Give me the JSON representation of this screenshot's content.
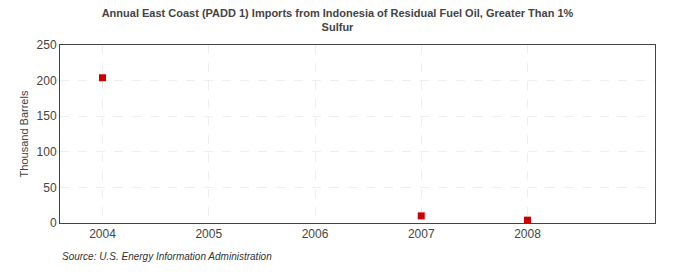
{
  "chart_data": {
    "type": "scatter",
    "title": "Annual East Coast (PADD 1) Imports from Indonesia of Residual Fuel Oil, Greater Than 1%\nSulfur",
    "ylabel": "Thousand Barrels",
    "annotations": [
      "Source: U.S. Energy Information Administration"
    ],
    "x": [
      2004,
      2007,
      2008
    ],
    "values": [
      204,
      10,
      4
    ],
    "color": "#cc0000",
    "marker": "square",
    "xlim": [
      2003.6,
      2009.2
    ],
    "xticks": [
      2004,
      2005,
      2006,
      2007,
      2008
    ],
    "ylim": [
      0,
      250
    ],
    "yticks": [
      0,
      50,
      100,
      150,
      200,
      250
    ],
    "grid": true
  }
}
